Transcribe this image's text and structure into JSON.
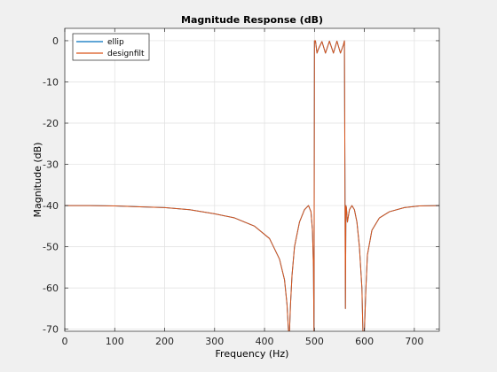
{
  "chart_data": {
    "type": "line",
    "title": "Magnitude Response (dB)",
    "xlabel": "Frequency (Hz)",
    "ylabel": "Magnitude (dB)",
    "xlim": [
      0,
      750
    ],
    "ylim": [
      -70.5,
      3
    ],
    "xticks": [
      0,
      100,
      200,
      300,
      400,
      500,
      600,
      700
    ],
    "yticks": [
      0,
      -10,
      -20,
      -30,
      -40,
      -50,
      -60,
      -70
    ],
    "grid": true,
    "legend_position": "top-left",
    "colors": {
      "axes_bg": "#ffffff",
      "figure_bg": "#f0f0f0",
      "grid": "#dfdfdf",
      "axis": "#262626"
    },
    "series": [
      {
        "name": "ellip",
        "color": "#0072bd",
        "x": [
          0,
          50,
          100,
          150,
          200,
          250,
          300,
          340,
          380,
          410,
          430,
          440,
          445,
          448,
          450,
          452,
          455,
          460,
          470,
          480,
          488,
          493,
          496,
          498,
          499,
          500,
          502,
          505,
          508,
          515,
          522,
          530,
          538,
          545,
          552,
          558,
          560,
          562,
          563,
          564,
          566,
          570,
          575,
          580,
          585,
          590,
          595,
          597,
          600,
          603,
          606,
          615,
          630,
          650,
          680,
          710,
          750
        ],
        "y": [
          -40,
          -40,
          -40.1,
          -40.3,
          -40.5,
          -41,
          -42,
          -43,
          -45,
          -48,
          -53,
          -58,
          -64,
          -70.5,
          -70.5,
          -64,
          -57,
          -50,
          -44,
          -41,
          -40,
          -41.5,
          -46,
          -55,
          -70.5,
          0,
          0,
          -3,
          -2,
          -0.2,
          -3,
          -0.1,
          -3,
          -0.1,
          -3,
          -1,
          0,
          -65,
          -40,
          -40.5,
          -44,
          -41,
          -40,
          -41,
          -44,
          -50,
          -60,
          -70.5,
          -70.5,
          -60,
          -52,
          -46,
          -43,
          -41.5,
          -40.5,
          -40.1,
          -40
        ]
      },
      {
        "name": "designfilt",
        "color": "#d95319",
        "x": [
          0,
          50,
          100,
          150,
          200,
          250,
          300,
          340,
          380,
          410,
          430,
          440,
          445,
          448,
          450,
          452,
          455,
          460,
          470,
          480,
          488,
          493,
          496,
          498,
          499,
          500,
          502,
          505,
          508,
          515,
          522,
          530,
          538,
          545,
          552,
          558,
          560,
          562,
          563,
          564,
          566,
          570,
          575,
          580,
          585,
          590,
          595,
          597,
          600,
          603,
          606,
          615,
          630,
          650,
          680,
          710,
          750
        ],
        "y": [
          -40,
          -40,
          -40.1,
          -40.3,
          -40.5,
          -41,
          -42,
          -43,
          -45,
          -48,
          -53,
          -58,
          -64,
          -70.5,
          -70.5,
          -64,
          -57,
          -50,
          -44,
          -41,
          -40,
          -41.5,
          -46,
          -55,
          -70.5,
          0,
          0,
          -3,
          -2,
          -0.2,
          -3,
          -0.1,
          -3,
          -0.1,
          -3,
          -1,
          0,
          -65,
          -40,
          -40.5,
          -44,
          -41,
          -40,
          -41,
          -44,
          -50,
          -60,
          -70.5,
          -70.5,
          -60,
          -52,
          -46,
          -43,
          -41.5,
          -40.5,
          -40.1,
          -40
        ]
      }
    ]
  }
}
